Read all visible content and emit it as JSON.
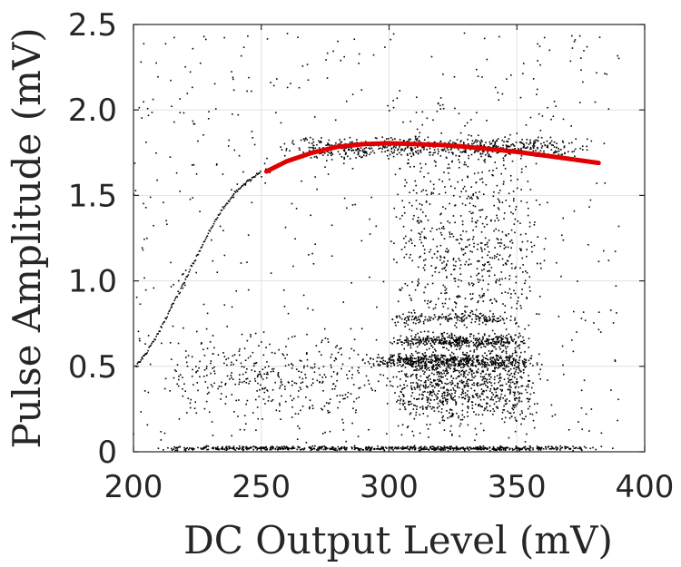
{
  "chart_data": {
    "type": "scatter",
    "title": "",
    "xlabel": "DC Output Level (mV)",
    "ylabel": "Pulse Amplitude (mV)",
    "xlim": [
      200,
      400
    ],
    "ylim": [
      0,
      2.5
    ],
    "xticks": [
      200,
      250,
      300,
      350,
      400
    ],
    "yticks": [
      0,
      0.5,
      1.0,
      1.5,
      2.0,
      2.5
    ],
    "xtick_labels": [
      "200",
      "250",
      "300",
      "350",
      "400"
    ],
    "ytick_labels": [
      "0",
      "0.5",
      "1.0",
      "1.5",
      "2.0",
      "2.5"
    ],
    "grid": true,
    "colors": {
      "points": "#000000",
      "fit": "#e00000",
      "grid": "#e2e2e2",
      "text": "#262626"
    },
    "fit_curve": {
      "x": [
        252,
        260,
        270,
        280,
        290,
        300,
        310,
        320,
        330,
        340,
        350,
        360,
        370,
        382
      ],
      "y": [
        1.64,
        1.7,
        1.75,
        1.785,
        1.8,
        1.805,
        1.8,
        1.795,
        1.785,
        1.77,
        1.755,
        1.735,
        1.715,
        1.69
      ]
    },
    "rise_points": {
      "x": [
        201,
        205,
        210,
        215,
        220,
        225,
        230,
        235,
        240,
        245,
        250
      ],
      "y": [
        0.5,
        0.58,
        0.7,
        0.85,
        1.0,
        1.15,
        1.3,
        1.42,
        1.52,
        1.59,
        1.64
      ]
    },
    "scatter_clusters": [
      {
        "x_range": [
          202,
          390
        ],
        "y_center": 0.02,
        "y_spread": 0.006,
        "count": 700
      },
      {
        "x_range": [
          255,
          382
        ],
        "y_center": 1.78,
        "y_spread": 0.03,
        "count": 600
      },
      {
        "x_range": [
          290,
          360
        ],
        "y_center": 0.53,
        "y_spread": 0.02,
        "count": 500
      },
      {
        "x_range": [
          300,
          355
        ],
        "y_center": 0.65,
        "y_spread": 0.018,
        "count": 350
      },
      {
        "x_range": [
          300,
          350
        ],
        "y_center": 0.78,
        "y_spread": 0.015,
        "count": 150
      },
      {
        "x_range": [
          300,
          360
        ],
        "y_center": 0.4,
        "y_spread": 0.12,
        "count": 900
      },
      {
        "x_range": [
          300,
          360
        ],
        "y_center": 1.2,
        "y_spread": 0.35,
        "count": 700
      },
      {
        "x_range": [
          200,
          390
        ],
        "y_center": 1.25,
        "y_spread": 1.2,
        "count": 600
      },
      {
        "x_range": [
          210,
          300
        ],
        "y_center": 0.45,
        "y_spread": 0.12,
        "count": 350
      }
    ]
  }
}
